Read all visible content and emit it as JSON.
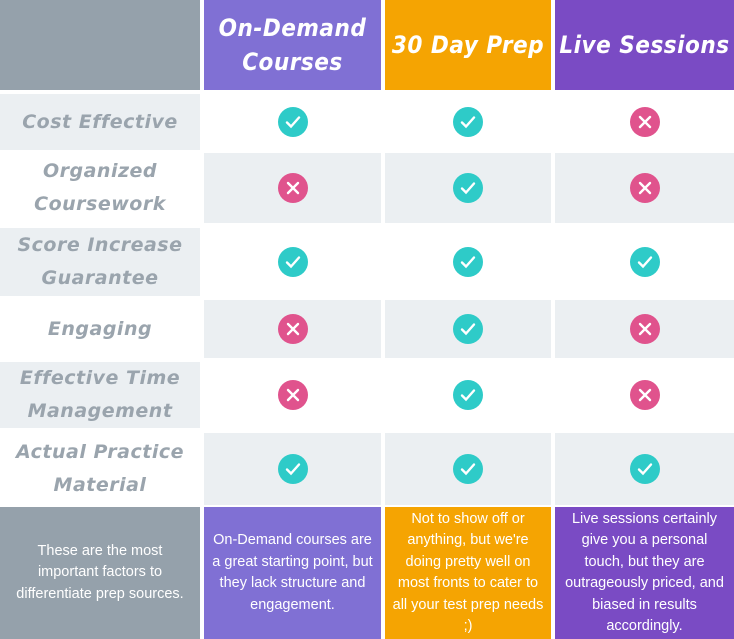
{
  "colors": {
    "label_bg": "#95a1ab",
    "on_demand": "#8070d4",
    "day30": "#f5a402",
    "live": "#7a4bc4",
    "check": "#2ecbc8",
    "cross": "#e0538d"
  },
  "columns": [
    {
      "title": "On-Demand Courses",
      "description": "On-Demand courses are a great starting point, but they lack structure and engagement."
    },
    {
      "title": "30 Day Prep",
      "description": "Not to show off or anything, but we're doing pretty well on most fronts to cater to all your test prep needs ;)"
    },
    {
      "title": "Live Sessions",
      "description": "Live sessions certainly give you a personal touch, but they are outrageously priced, and biased in results accordingly."
    }
  ],
  "label_description": "These are the most important factors to differentiate prep sources.",
  "rows": [
    {
      "label": "Cost Effective",
      "values": [
        "check",
        "check",
        "cross"
      ]
    },
    {
      "label": "Organized Coursework",
      "values": [
        "cross",
        "check",
        "cross"
      ]
    },
    {
      "label": "Score Increase Guarantee",
      "values": [
        "check",
        "check",
        "check"
      ]
    },
    {
      "label": "Engaging",
      "values": [
        "cross",
        "check",
        "cross"
      ]
    },
    {
      "label": "Effective Time Management",
      "values": [
        "cross",
        "check",
        "cross"
      ]
    },
    {
      "label": "Actual Practice Material",
      "values": [
        "check",
        "check",
        "check"
      ]
    }
  ]
}
